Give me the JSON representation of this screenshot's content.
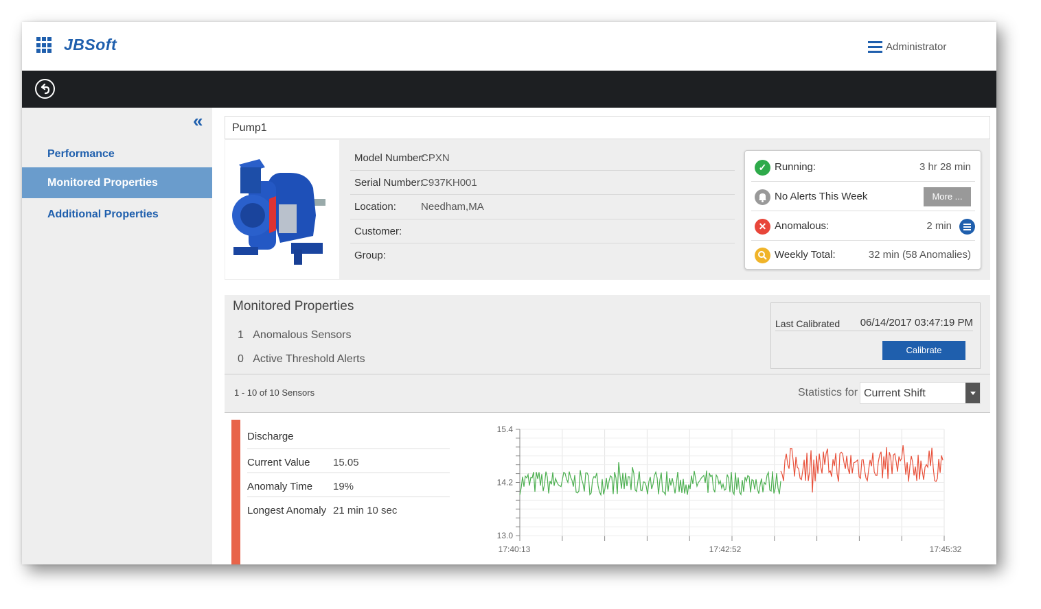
{
  "header": {
    "logo": "JBSoft",
    "user_label": "Administrator"
  },
  "sidebar": {
    "items": [
      {
        "label": "Performance"
      },
      {
        "label": "Monitored Properties"
      },
      {
        "label": "Additional Properties"
      }
    ]
  },
  "pump": {
    "title": "Pump1",
    "fields": [
      {
        "label": "Model Number:",
        "value": "CPXN"
      },
      {
        "label": "Serial Number:",
        "value": "C937KH001"
      },
      {
        "label": "Location:",
        "value": "Needham,MA"
      },
      {
        "label": "Customer:",
        "value": ""
      },
      {
        "label": "Group:",
        "value": ""
      }
    ]
  },
  "status": {
    "running_label": "Running:",
    "running_value": "3 hr 28 min",
    "alerts_label": "No Alerts This Week",
    "more_label": "More ...",
    "anomalous_label": "Anomalous:",
    "anomalous_value": "2 min",
    "weekly_label": "Weekly Total:",
    "weekly_value": "32 min (58 Anomalies)",
    "colors": {
      "running": "#2eaa4a",
      "alerts": "#999999",
      "anomalous": "#e8463a",
      "weekly": "#f0b429"
    }
  },
  "monitored": {
    "title": "Monitored Properties",
    "anomalous_count": "1",
    "anomalous_label": "Anomalous Sensors",
    "alerts_count": "0",
    "alerts_label": "Active Threshold Alerts",
    "last_calibrated_label": "Last Calibrated",
    "last_calibrated_value": "06/14/2017 03:47:19 PM",
    "calibrate_label": "Calibrate"
  },
  "sensors_bar": {
    "count_text": "1 - 10 of 10 Sensors",
    "stats_label": "Statistics for",
    "stats_value": "Current Shift"
  },
  "sensor": {
    "name": "Discharge",
    "current_label": "Current Value",
    "current_value": "15.05",
    "anomaly_label": "Anomaly Time",
    "anomaly_value": "19%",
    "longest_label": "Longest Anomaly",
    "longest_value": "21 min 10 sec",
    "accent_color": "#e8644a"
  },
  "chart_data": {
    "type": "line",
    "title": "",
    "xlabel": "",
    "ylabel": "",
    "ylim": [
      13.0,
      15.4
    ],
    "y_ticks": [
      "15.4",
      "14.2",
      "13.0"
    ],
    "x_ticks": [
      "17:40:13",
      "17:42:52",
      "17:45:32"
    ],
    "grid": true,
    "series": [
      {
        "color": "#4caf50",
        "x_range": [
          0,
          0.615
        ],
        "mean": 14.2,
        "amplitude": 0.28
      },
      {
        "color": "#e8503a",
        "x_range": [
          0.615,
          1.0
        ],
        "mean": 14.6,
        "amplitude": 0.4
      }
    ]
  }
}
